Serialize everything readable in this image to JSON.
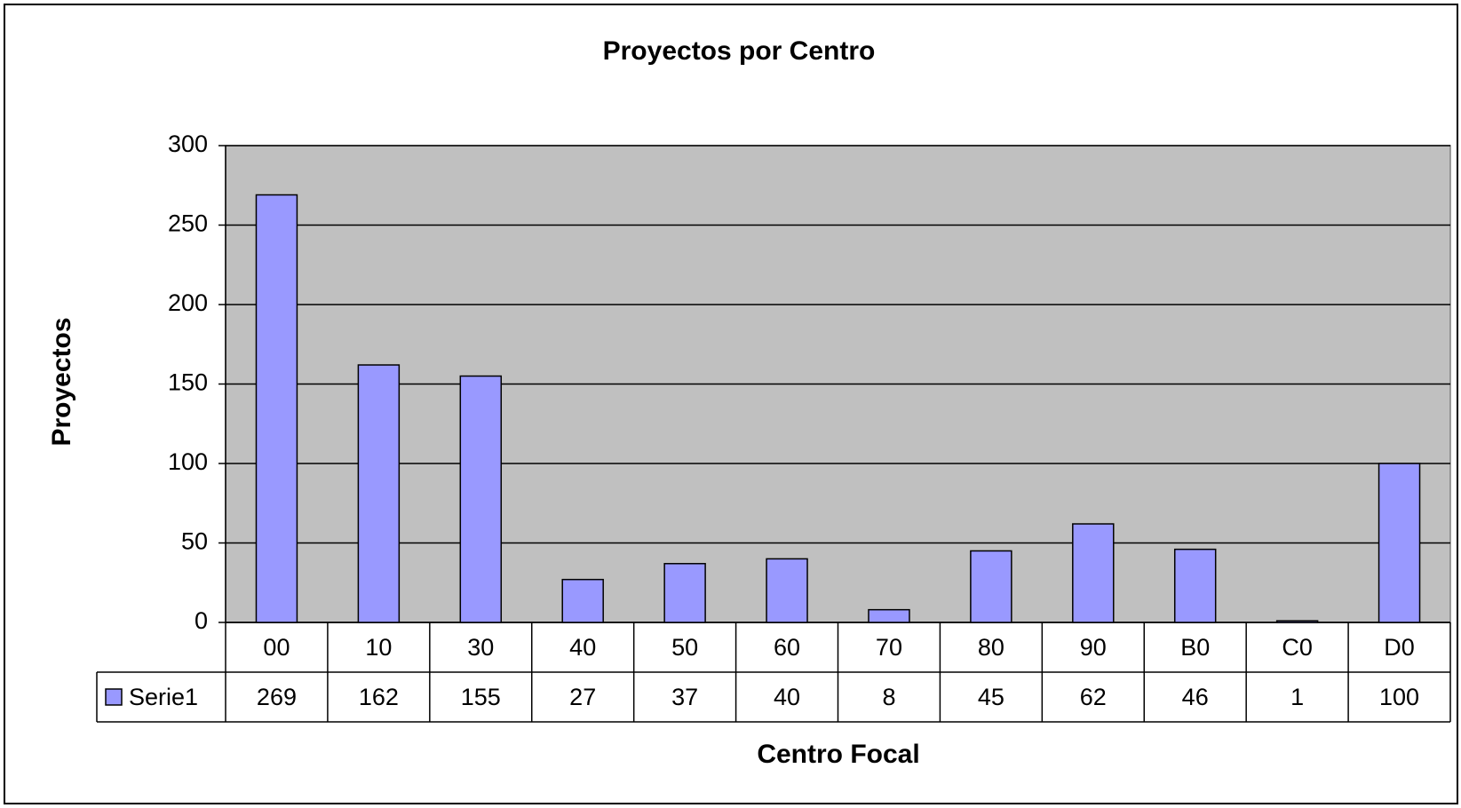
{
  "chart_data": {
    "type": "bar",
    "title": "Proyectos por Centro",
    "x_label": "Centro Focal",
    "y_label": "Proyectos",
    "categories": [
      "00",
      "10",
      "30",
      "40",
      "50",
      "60",
      "70",
      "80",
      "90",
      "B0",
      "C0",
      "D0"
    ],
    "series": [
      {
        "name": "Serie1",
        "color": "#9999ff",
        "values": [
          269,
          162,
          155,
          27,
          37,
          40,
          8,
          45,
          62,
          46,
          1,
          100
        ]
      }
    ],
    "ylim": [
      0,
      300
    ],
    "yticks": [
      0,
      50,
      100,
      150,
      200,
      250,
      300
    ],
    "grid": true,
    "data_table": true
  }
}
